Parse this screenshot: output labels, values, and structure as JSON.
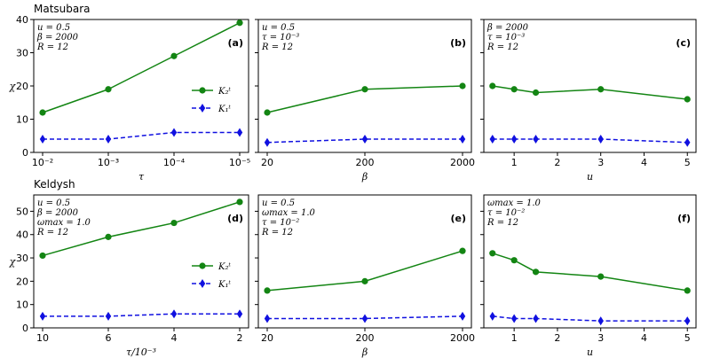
{
  "figure": {
    "row_titles": [
      "Matsubara",
      "Keldysh"
    ],
    "colors": {
      "green_series": "#138513",
      "blue_series": "#1010e0",
      "axis": "#000000"
    }
  },
  "chart_data": [
    {
      "type": "line",
      "panel": "(a)",
      "row": 0,
      "col": 0,
      "x": [
        "10^-2",
        "10^-3",
        "10^-4",
        "10^-5"
      ],
      "xtick_labels": [
        "10⁻²",
        "10⁻³",
        "10⁻⁴",
        "10⁻⁵"
      ],
      "xlabel": "τ",
      "ylabel": "χ",
      "ylim": [
        0,
        40
      ],
      "yticks": [
        "0",
        "10",
        "20",
        "30",
        "40"
      ],
      "series": [
        {
          "name": "K₂ᵗ",
          "marker": "circle",
          "style": "solid",
          "values": [
            12,
            19,
            29,
            39
          ]
        },
        {
          "name": "K₁ᵗ",
          "marker": "diamond",
          "style": "dashed",
          "values": [
            4,
            4,
            6,
            6
          ]
        }
      ],
      "annotation": [
        "u = 0.5",
        "β = 2000",
        "R = 12"
      ],
      "legend": "center-right"
    },
    {
      "type": "line",
      "panel": "(b)",
      "row": 0,
      "col": 1,
      "x": [
        "20",
        "200",
        "2000"
      ],
      "xtick_labels": [
        "20",
        "200",
        "2000"
      ],
      "xlabel": "β",
      "ylim": [
        0,
        40
      ],
      "series": [
        {
          "name": "K₂ᵗ",
          "marker": "circle",
          "style": "solid",
          "values": [
            12,
            19,
            20
          ]
        },
        {
          "name": "K₁ᵗ",
          "marker": "diamond",
          "style": "dashed",
          "values": [
            3,
            4,
            4
          ]
        }
      ],
      "annotation": [
        "u = 0.5",
        "τ = 10⁻³",
        "R = 12"
      ]
    },
    {
      "type": "line",
      "panel": "(c)",
      "row": 0,
      "col": 2,
      "x": [
        0.5,
        1,
        1.5,
        3,
        5
      ],
      "xtick_labels": [
        "1",
        "2",
        "3",
        "4",
        "5"
      ],
      "xlabel": "u",
      "ylim": [
        0,
        40
      ],
      "xlim": [
        0.3,
        5.2
      ],
      "series": [
        {
          "name": "K₂ᵗ",
          "marker": "circle",
          "style": "solid",
          "values": [
            20,
            19,
            18,
            19,
            16
          ]
        },
        {
          "name": "K₁ᵗ",
          "marker": "diamond",
          "style": "dashed",
          "values": [
            4,
            4,
            4,
            4,
            3
          ]
        }
      ],
      "annotation": [
        "β = 2000",
        "τ = 10⁻³",
        "R = 12"
      ]
    },
    {
      "type": "line",
      "panel": "(d)",
      "row": 1,
      "col": 0,
      "x": [
        "10",
        "6",
        "4",
        "2"
      ],
      "xtick_labels": [
        "10",
        "6",
        "4",
        "2"
      ],
      "xlabel": "τ/10⁻³",
      "ylabel": "χ",
      "ylim": [
        0,
        57
      ],
      "yticks": [
        "0",
        "10",
        "20",
        "30",
        "40",
        "50"
      ],
      "series": [
        {
          "name": "K₂ᵗ",
          "marker": "circle",
          "style": "solid",
          "values": [
            31,
            39,
            45,
            54
          ]
        },
        {
          "name": "K₁ᵗ",
          "marker": "diamond",
          "style": "dashed",
          "values": [
            5,
            5,
            6,
            6
          ]
        }
      ],
      "annotation": [
        "u = 0.5",
        "β = 2000",
        "ωmax = 1.0",
        "R = 12"
      ],
      "legend": "center-right"
    },
    {
      "type": "line",
      "panel": "(e)",
      "row": 1,
      "col": 1,
      "x": [
        "20",
        "200",
        "2000"
      ],
      "xtick_labels": [
        "20",
        "200",
        "2000"
      ],
      "xlabel": "β",
      "ylim": [
        0,
        57
      ],
      "series": [
        {
          "name": "K₂ᵗ",
          "marker": "circle",
          "style": "solid",
          "values": [
            16,
            20,
            33
          ]
        },
        {
          "name": "K₁ᵗ",
          "marker": "diamond",
          "style": "dashed",
          "values": [
            4,
            4,
            5
          ]
        }
      ],
      "annotation": [
        "u = 0.5",
        "ωmax = 1.0",
        "τ = 10⁻²",
        "R = 12"
      ]
    },
    {
      "type": "line",
      "panel": "(f)",
      "row": 1,
      "col": 2,
      "x": [
        0.5,
        1,
        1.5,
        3,
        5
      ],
      "xtick_labels": [
        "1",
        "2",
        "3",
        "4",
        "5"
      ],
      "xlabel": "u",
      "ylim": [
        0,
        57
      ],
      "xlim": [
        0.3,
        5.2
      ],
      "series": [
        {
          "name": "K₂ᵗ",
          "marker": "circle",
          "style": "solid",
          "values": [
            32,
            29,
            24,
            22,
            16
          ]
        },
        {
          "name": "K₁ᵗ",
          "marker": "diamond",
          "style": "dashed",
          "values": [
            5,
            4,
            4,
            3,
            3
          ]
        }
      ],
      "annotation": [
        "ωmax = 1.0",
        "τ = 10⁻²",
        "R = 12"
      ]
    }
  ]
}
